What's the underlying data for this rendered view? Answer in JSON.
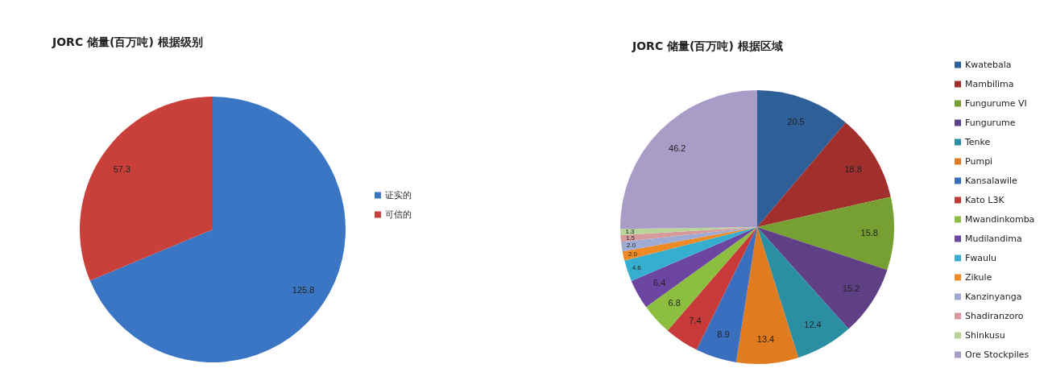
{
  "chart_data": [
    {
      "type": "pie",
      "title": "JORC 储量(百万吨) 根据级别",
      "categories": [
        "证实的",
        "可信的"
      ],
      "values": [
        125.8,
        57.3
      ],
      "colors": [
        "#3b76c4",
        "#c9403a"
      ],
      "data_labels": true,
      "legend": "right"
    },
    {
      "type": "pie",
      "title": "JORC 储量(百万吨) 根据区域",
      "categories": [
        "Kwatebala",
        "Mambilima",
        "Fungurume VI",
        "Fungurume",
        "Tenke",
        "Pumpi",
        "Kansalawile",
        "Kato L3K",
        "Mwandinkomba",
        "Mudilandima",
        "Fwaulu",
        "Zikule",
        "Kanzinyanga",
        "Shadiranzoro",
        "Shinkusu",
        "Ore Stockpiles"
      ],
      "values": [
        20.5,
        18.8,
        15.8,
        15.2,
        12.4,
        13.4,
        8.9,
        7.4,
        6.8,
        6.4,
        4.6,
        2.0,
        2.0,
        1.5,
        1.3,
        46.2
      ],
      "colors": [
        "#2f5f98",
        "#a1302d",
        "#77a033",
        "#5f3f85",
        "#2b8fa3",
        "#e07b1f",
        "#3a6fc0",
        "#c83a3a",
        "#8cbf3f",
        "#6b45a0",
        "#35aed0",
        "#f08a24",
        "#9dabd5",
        "#d79a9a",
        "#b8d49a",
        "#a99cc6"
      ],
      "value_labels": [
        "20.5",
        "18.8",
        "15.8",
        "15.2",
        "12.4",
        "13.4",
        "8.9",
        "7.4",
        "6.8",
        "6.4",
        "4.6",
        "2.0",
        "2.0",
        "1.5",
        "1.3",
        "46.2"
      ],
      "legend": "right"
    }
  ]
}
